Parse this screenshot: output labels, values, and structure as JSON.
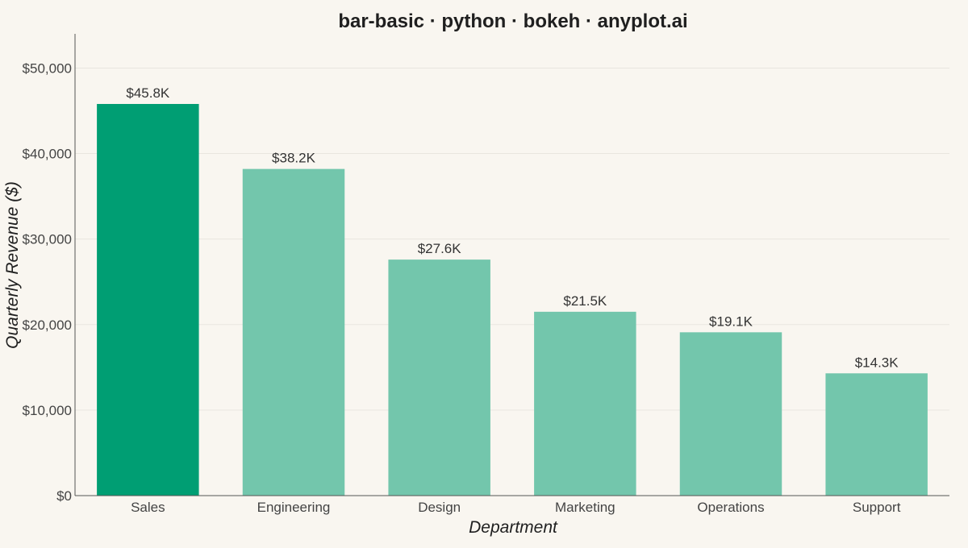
{
  "chart_data": {
    "type": "bar",
    "title": "bar-basic · python · bokeh · anyplot.ai",
    "xlabel": "Department",
    "ylabel": "Quarterly Revenue ($)",
    "categories": [
      "Sales",
      "Engineering",
      "Design",
      "Marketing",
      "Operations",
      "Support"
    ],
    "values": [
      45800,
      38200,
      27600,
      21500,
      19100,
      14300
    ],
    "value_labels": [
      "$45.8K",
      "$38.2K",
      "$27.6K",
      "$21.5K",
      "$19.1K",
      "$14.3K"
    ],
    "ylim": [
      0,
      54000
    ],
    "yticks": [
      0,
      10000,
      20000,
      30000,
      40000,
      50000
    ],
    "ytick_labels": [
      "$0",
      "$10,000",
      "$20,000",
      "$30,000",
      "$40,000",
      "$50,000"
    ],
    "grid": true,
    "legend": "none",
    "colors": {
      "highlight": "#009E73",
      "bar": "#73C6AC",
      "background": "#F9F6F0"
    }
  }
}
